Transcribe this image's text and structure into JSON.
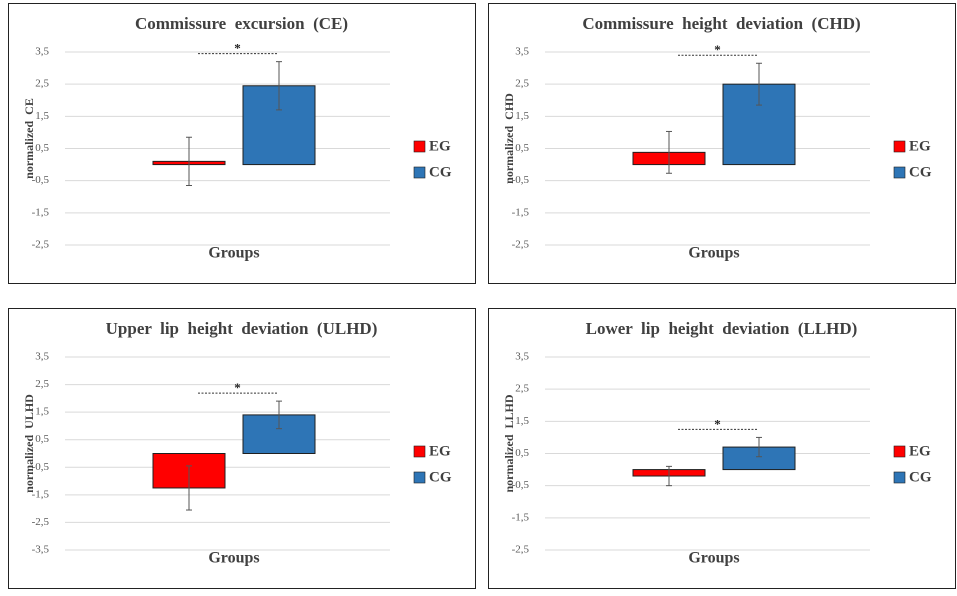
{
  "chart_data": [
    {
      "type": "bar",
      "title": "Commissure  excursion  (CE)",
      "ylabel": "normalized  CE",
      "xlabel": "Groups",
      "annotation": "*",
      "ylim": [
        -2.5,
        3.5
      ],
      "yticks": [
        {
          "value": 3.5,
          "label": "3,5"
        },
        {
          "value": 2.5,
          "label": "2,5"
        },
        {
          "value": 1.5,
          "label": "1,5"
        },
        {
          "value": 0.5,
          "label": "0,5"
        },
        {
          "value": -0.5,
          "label": "-0,5"
        },
        {
          "value": -1.5,
          "label": "-1,5"
        },
        {
          "value": -2.5,
          "label": "-2,5"
        }
      ],
      "grid": true,
      "legend": "right",
      "series": [
        {
          "name": "EG",
          "color": "#ff0000",
          "values": [
            0.1
          ],
          "errors": [
            0.75
          ]
        },
        {
          "name": "CG",
          "color": "#2e75b6",
          "values": [
            2.45
          ],
          "errors": [
            0.75
          ]
        }
      ]
    },
    {
      "type": "bar",
      "title": "Commissure  height  deviation  (CHD)",
      "ylabel": "normalized  CHD",
      "xlabel": "Groups",
      "annotation": "*",
      "ylim": [
        -2.5,
        3.5
      ],
      "yticks": [
        {
          "value": 3.5,
          "label": "3,5"
        },
        {
          "value": 2.5,
          "label": "2,5"
        },
        {
          "value": 1.5,
          "label": "1,5"
        },
        {
          "value": 0.5,
          "label": "0,5"
        },
        {
          "value": -0.5,
          "label": "-0,5"
        },
        {
          "value": -1.5,
          "label": "-1,5"
        },
        {
          "value": -2.5,
          "label": "-2,5"
        }
      ],
      "grid": true,
      "legend": "right",
      "series": [
        {
          "name": "EG",
          "color": "#ff0000",
          "values": [
            0.38
          ],
          "errors": [
            0.65
          ]
        },
        {
          "name": "CG",
          "color": "#2e75b6",
          "values": [
            2.5
          ],
          "errors": [
            0.65
          ]
        }
      ]
    },
    {
      "type": "bar",
      "title": "Upper  lip  height  deviation  (ULHD)",
      "ylabel": "normalized  ULHD",
      "xlabel": "Groups",
      "annotation": "*",
      "ylim": [
        -3.5,
        3.5
      ],
      "yticks": [
        {
          "value": 3.5,
          "label": "3,5"
        },
        {
          "value": 2.5,
          "label": "2,5"
        },
        {
          "value": 1.5,
          "label": "1,5"
        },
        {
          "value": 0.5,
          "label": "0,5"
        },
        {
          "value": -0.5,
          "label": "-0,5"
        },
        {
          "value": -1.5,
          "label": "-1,5"
        },
        {
          "value": -2.5,
          "label": "-2,5"
        },
        {
          "value": -3.5,
          "label": "-3,5"
        }
      ],
      "grid": true,
      "legend": "right",
      "series": [
        {
          "name": "EG",
          "color": "#ff0000",
          "values": [
            -1.25
          ],
          "errors": [
            0.8
          ]
        },
        {
          "name": "CG",
          "color": "#2e75b6",
          "values": [
            1.4
          ],
          "errors": [
            0.5
          ]
        }
      ]
    },
    {
      "type": "bar",
      "title": "Lower  lip  height  deviation  (LLHD)",
      "ylabel": "normalized  LLHD",
      "xlabel": "Groups",
      "annotation": "*",
      "ylim": [
        -2.5,
        3.5
      ],
      "yticks": [
        {
          "value": 3.5,
          "label": "3,5"
        },
        {
          "value": 2.5,
          "label": "2,5"
        },
        {
          "value": 1.5,
          "label": "1,5"
        },
        {
          "value": 0.5,
          "label": "0,5"
        },
        {
          "value": -0.5,
          "label": "-0,5"
        },
        {
          "value": -1.5,
          "label": "-1,5"
        },
        {
          "value": -2.5,
          "label": "-2,5"
        }
      ],
      "grid": true,
      "legend": "right",
      "series": [
        {
          "name": "EG",
          "color": "#ff0000",
          "values": [
            -0.2
          ],
          "errors": [
            0.3
          ]
        },
        {
          "name": "CG",
          "color": "#2e75b6",
          "values": [
            0.7
          ],
          "errors": [
            0.3
          ]
        }
      ]
    }
  ]
}
